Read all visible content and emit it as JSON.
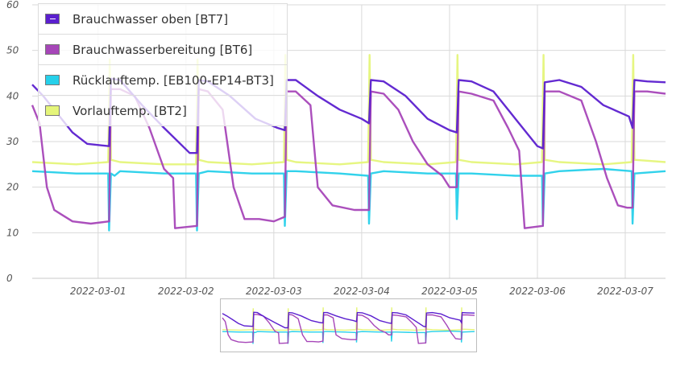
{
  "chart_data": {
    "type": "line",
    "yaxis": {
      "min": 0,
      "max": 60,
      "ticks": [
        "0",
        "10",
        "20",
        "30",
        "40",
        "50",
        "60"
      ]
    },
    "xaxis": {
      "min": "2022-02-28T06:00",
      "max": "2022-03-07T11:00",
      "tick_labels": [
        "2022-03-01",
        "2022-03-02",
        "2022-03-03",
        "2022-03-04",
        "2022-03-05",
        "2022-03-06",
        "2022-03-07"
      ],
      "tick_dates": [
        "2022-03-01T00:00",
        "2022-03-02T00:00",
        "2022-03-03T00:00",
        "2022-03-04T00:00",
        "2022-03-05T00:00",
        "2022-03-06T00:00",
        "2022-03-07T00:00"
      ]
    },
    "grid": true,
    "legend_position": "top-left",
    "series": [
      {
        "name": "Brauchwasser oben [BT7]",
        "color": "#5b1fcf",
        "selected": true,
        "points": [
          [
            "2022-02-28T06:00",
            42.5
          ],
          [
            "2022-02-28T09:00",
            40
          ],
          [
            "2022-02-28T13:00",
            36
          ],
          [
            "2022-02-28T17:00",
            32
          ],
          [
            "2022-02-28T21:00",
            29.5
          ],
          [
            "2022-03-01T03:00",
            29
          ],
          [
            "2022-03-01T03:30",
            43.8
          ],
          [
            "2022-03-01T06:00",
            43.5
          ],
          [
            "2022-03-01T12:00",
            38
          ],
          [
            "2022-03-01T18:00",
            33
          ],
          [
            "2022-03-02T01:00",
            27.5
          ],
          [
            "2022-03-02T03:00",
            27.5
          ],
          [
            "2022-03-02T03:30",
            43.5
          ],
          [
            "2022-03-02T06:00",
            43.2
          ],
          [
            "2022-03-02T12:00",
            40
          ],
          [
            "2022-03-02T19:00",
            35
          ],
          [
            "2022-03-03T01:00",
            33
          ],
          [
            "2022-03-03T03:00",
            32.5
          ],
          [
            "2022-03-03T03:30",
            43.5
          ],
          [
            "2022-03-03T06:00",
            43.5
          ],
          [
            "2022-03-03T12:00",
            40
          ],
          [
            "2022-03-03T18:00",
            37
          ],
          [
            "2022-03-04T00:00",
            35
          ],
          [
            "2022-03-04T02:00",
            34
          ],
          [
            "2022-03-04T02:30",
            43.5
          ],
          [
            "2022-03-04T06:00",
            43.2
          ],
          [
            "2022-03-04T12:00",
            40
          ],
          [
            "2022-03-04T18:00",
            35
          ],
          [
            "2022-03-05T00:00",
            32.5
          ],
          [
            "2022-03-05T02:00",
            32
          ],
          [
            "2022-03-05T02:30",
            43.5
          ],
          [
            "2022-03-05T06:00",
            43.2
          ],
          [
            "2022-03-05T12:00",
            41
          ],
          [
            "2022-03-05T18:00",
            35
          ],
          [
            "2022-03-06T00:00",
            29
          ],
          [
            "2022-03-06T01:30",
            28.5
          ],
          [
            "2022-03-06T02:00",
            43
          ],
          [
            "2022-03-06T06:00",
            43.5
          ],
          [
            "2022-03-06T12:00",
            42
          ],
          [
            "2022-03-06T18:00",
            38
          ],
          [
            "2022-03-07T01:00",
            35.5
          ],
          [
            "2022-03-07T02:00",
            33
          ],
          [
            "2022-03-07T02:30",
            43.5
          ],
          [
            "2022-03-07T06:00",
            43.2
          ],
          [
            "2022-03-07T11:00",
            43
          ]
        ]
      },
      {
        "name": "Brauchwasserbereitung [BT6]",
        "color": "#a646b8",
        "selected": false,
        "points": [
          [
            "2022-02-28T06:00",
            38
          ],
          [
            "2022-02-28T08:00",
            34
          ],
          [
            "2022-02-28T10:00",
            20
          ],
          [
            "2022-02-28T12:00",
            15
          ],
          [
            "2022-02-28T14:00",
            14
          ],
          [
            "2022-02-28T17:00",
            12.5
          ],
          [
            "2022-02-28T22:00",
            12
          ],
          [
            "2022-03-01T03:00",
            12.5
          ],
          [
            "2022-03-01T03:30",
            41.5
          ],
          [
            "2022-03-01T06:00",
            41.5
          ],
          [
            "2022-03-01T10:00",
            40
          ],
          [
            "2022-03-01T14:00",
            33
          ],
          [
            "2022-03-01T18:00",
            24
          ],
          [
            "2022-03-01T20:30",
            22
          ],
          [
            "2022-03-01T21:00",
            11
          ],
          [
            "2022-03-02T03:00",
            11.5
          ],
          [
            "2022-03-02T03:30",
            41.5
          ],
          [
            "2022-03-02T06:00",
            41
          ],
          [
            "2022-03-02T10:00",
            37
          ],
          [
            "2022-03-02T13:00",
            20
          ],
          [
            "2022-03-02T16:00",
            13
          ],
          [
            "2022-03-02T20:00",
            13
          ],
          [
            "2022-03-03T00:00",
            12.5
          ],
          [
            "2022-03-03T03:00",
            13.5
          ],
          [
            "2022-03-03T03:30",
            41
          ],
          [
            "2022-03-03T06:00",
            41
          ],
          [
            "2022-03-03T10:00",
            38
          ],
          [
            "2022-03-03T12:00",
            20
          ],
          [
            "2022-03-03T16:00",
            16
          ],
          [
            "2022-03-03T22:00",
            15
          ],
          [
            "2022-03-04T02:00",
            15
          ],
          [
            "2022-03-04T02:30",
            41
          ],
          [
            "2022-03-04T06:00",
            40.5
          ],
          [
            "2022-03-04T10:00",
            37
          ],
          [
            "2022-03-04T14:00",
            30
          ],
          [
            "2022-03-04T18:00",
            25
          ],
          [
            "2022-03-04T22:00",
            22.5
          ],
          [
            "2022-03-05T00:00",
            20
          ],
          [
            "2022-03-05T02:00",
            20
          ],
          [
            "2022-03-05T02:30",
            41
          ],
          [
            "2022-03-05T06:00",
            40.5
          ],
          [
            "2022-03-05T12:00",
            39
          ],
          [
            "2022-03-05T16:00",
            33
          ],
          [
            "2022-03-05T19:00",
            28
          ],
          [
            "2022-03-05T20:30",
            11
          ],
          [
            "2022-03-06T01:30",
            11.5
          ],
          [
            "2022-03-06T02:00",
            41
          ],
          [
            "2022-03-06T06:00",
            41
          ],
          [
            "2022-03-06T12:00",
            39
          ],
          [
            "2022-03-06T16:00",
            30
          ],
          [
            "2022-03-06T19:00",
            22
          ],
          [
            "2022-03-06T22:00",
            16
          ],
          [
            "2022-03-07T00:30",
            15.5
          ],
          [
            "2022-03-07T02:00",
            15.5
          ],
          [
            "2022-03-07T02:30",
            41
          ],
          [
            "2022-03-07T06:00",
            41
          ],
          [
            "2022-03-07T11:00",
            40.5
          ]
        ]
      },
      {
        "name": "Rücklauftemp. [EB100-EP14-BT3]",
        "color": "#26d0ea",
        "selected": false,
        "points": [
          [
            "2022-02-28T06:00",
            23.5
          ],
          [
            "2022-02-28T18:00",
            23
          ],
          [
            "2022-03-01T02:45",
            23
          ],
          [
            "2022-03-01T03:00",
            10.5
          ],
          [
            "2022-03-01T03:30",
            23
          ],
          [
            "2022-03-01T04:30",
            22.5
          ],
          [
            "2022-03-01T06:00",
            23.5
          ],
          [
            "2022-03-01T18:00",
            23
          ],
          [
            "2022-03-02T02:45",
            23
          ],
          [
            "2022-03-02T03:00",
            10.5
          ],
          [
            "2022-03-02T03:30",
            23
          ],
          [
            "2022-03-02T06:00",
            23.5
          ],
          [
            "2022-03-02T18:00",
            23
          ],
          [
            "2022-03-03T02:45",
            23
          ],
          [
            "2022-03-03T03:00",
            11.5
          ],
          [
            "2022-03-03T03:30",
            23.5
          ],
          [
            "2022-03-03T06:00",
            23.5
          ],
          [
            "2022-03-03T18:00",
            23
          ],
          [
            "2022-03-04T01:45",
            22.5
          ],
          [
            "2022-03-04T02:00",
            12
          ],
          [
            "2022-03-04T02:30",
            23
          ],
          [
            "2022-03-04T06:00",
            23.5
          ],
          [
            "2022-03-04T18:00",
            23
          ],
          [
            "2022-03-05T01:45",
            23
          ],
          [
            "2022-03-05T02:00",
            13
          ],
          [
            "2022-03-05T02:30",
            23
          ],
          [
            "2022-03-05T06:00",
            23
          ],
          [
            "2022-03-05T18:00",
            22.5
          ],
          [
            "2022-03-06T01:15",
            22.5
          ],
          [
            "2022-03-06T01:30",
            11.5
          ],
          [
            "2022-03-06T02:00",
            23
          ],
          [
            "2022-03-06T06:00",
            23.5
          ],
          [
            "2022-03-06T18:00",
            24
          ],
          [
            "2022-03-07T01:45",
            23.5
          ],
          [
            "2022-03-07T02:00",
            12
          ],
          [
            "2022-03-07T02:30",
            23
          ],
          [
            "2022-03-07T11:00",
            23.5
          ]
        ]
      },
      {
        "name": "Vorlauftemp. [BT2]",
        "color": "#e5f57a",
        "selected": false,
        "points": [
          [
            "2022-02-28T06:00",
            25.5
          ],
          [
            "2022-02-28T18:00",
            25
          ],
          [
            "2022-03-01T02:45",
            25.5
          ],
          [
            "2022-03-01T03:10",
            48
          ],
          [
            "2022-03-01T03:30",
            26
          ],
          [
            "2022-03-01T06:00",
            25.5
          ],
          [
            "2022-03-01T18:00",
            25
          ],
          [
            "2022-03-02T02:45",
            25
          ],
          [
            "2022-03-02T03:10",
            48
          ],
          [
            "2022-03-02T03:30",
            26
          ],
          [
            "2022-03-02T06:00",
            25.5
          ],
          [
            "2022-03-02T18:00",
            25
          ],
          [
            "2022-03-03T02:45",
            25.5
          ],
          [
            "2022-03-03T03:10",
            49
          ],
          [
            "2022-03-03T03:30",
            26
          ],
          [
            "2022-03-03T06:00",
            25.5
          ],
          [
            "2022-03-03T18:00",
            25
          ],
          [
            "2022-03-04T01:45",
            25.5
          ],
          [
            "2022-03-04T02:10",
            49
          ],
          [
            "2022-03-04T02:30",
            26
          ],
          [
            "2022-03-04T06:00",
            25.5
          ],
          [
            "2022-03-04T18:00",
            25
          ],
          [
            "2022-03-05T01:45",
            25.5
          ],
          [
            "2022-03-05T02:10",
            49
          ],
          [
            "2022-03-05T02:30",
            26
          ],
          [
            "2022-03-05T06:00",
            25.5
          ],
          [
            "2022-03-05T18:00",
            25
          ],
          [
            "2022-03-06T01:15",
            25.5
          ],
          [
            "2022-03-06T01:40",
            49
          ],
          [
            "2022-03-06T02:00",
            26
          ],
          [
            "2022-03-06T06:00",
            25.5
          ],
          [
            "2022-03-06T18:00",
            25
          ],
          [
            "2022-03-07T01:45",
            25.5
          ],
          [
            "2022-03-07T02:10",
            49
          ],
          [
            "2022-03-07T02:30",
            26
          ],
          [
            "2022-03-07T11:00",
            25.5
          ]
        ]
      }
    ]
  }
}
